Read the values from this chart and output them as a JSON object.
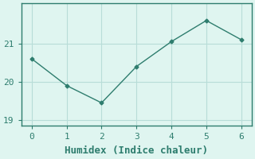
{
  "x": [
    0,
    1,
    2,
    3,
    4,
    5,
    6
  ],
  "y": [
    20.6,
    19.9,
    19.45,
    20.4,
    21.05,
    21.6,
    21.1
  ],
  "line_color": "#2e7d6e",
  "marker": "D",
  "marker_size": 2.5,
  "line_width": 1.0,
  "xlabel": "Humidex (Indice chaleur)",
  "ylim": [
    18.85,
    22.05
  ],
  "xlim": [
    -0.3,
    6.3
  ],
  "yticks": [
    19,
    20,
    21
  ],
  "xticks": [
    0,
    1,
    2,
    3,
    4,
    5,
    6
  ],
  "background_color": "#dff5f0",
  "grid_color": "#b8ddd8",
  "spine_color": "#2e7d6e",
  "xlabel_fontsize": 9,
  "tick_fontsize": 8,
  "font_family": "monospace"
}
